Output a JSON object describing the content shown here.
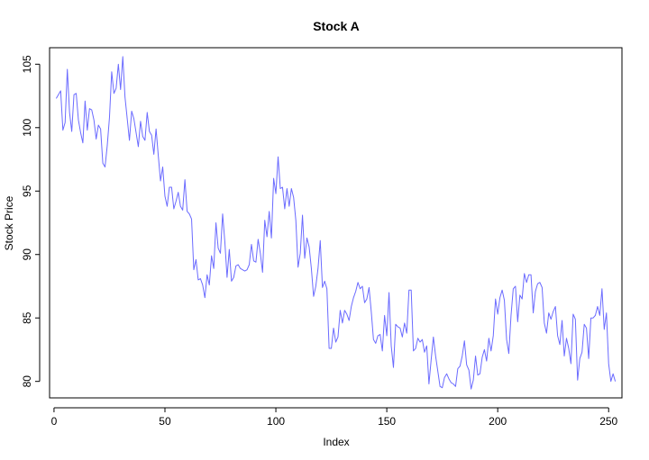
{
  "chart_data": {
    "type": "line",
    "title": "Stock A",
    "xlabel": "Index",
    "ylabel": "Stock Price",
    "xlim": [
      -2,
      256
    ],
    "ylim": [
      78.7,
      106.3
    ],
    "xticks": [
      0,
      50,
      100,
      150,
      200,
      250
    ],
    "yticks": [
      80,
      85,
      90,
      95,
      100,
      105
    ],
    "grid": false,
    "line_color": "#6b6bff",
    "series": [
      {
        "x": [
          1,
          2,
          3,
          4,
          5,
          6,
          7,
          8,
          9,
          10,
          11,
          12,
          13,
          14,
          15,
          16,
          17,
          18,
          19,
          20,
          21,
          22,
          23,
          24,
          25,
          26,
          27,
          28,
          29,
          30,
          31,
          32,
          33,
          34,
          35,
          36,
          37,
          38,
          39,
          40,
          41,
          42,
          43,
          44,
          45,
          46,
          47,
          48,
          49,
          50,
          51,
          52,
          53,
          54,
          55,
          56,
          57,
          58,
          59,
          60,
          61,
          62,
          63,
          64,
          65,
          66,
          67,
          68,
          69,
          70,
          71,
          72,
          73,
          74,
          75,
          76,
          77,
          78,
          79,
          80,
          81,
          82,
          83,
          84,
          85,
          86,
          87,
          88,
          89,
          90,
          91,
          92,
          93,
          94,
          95,
          96,
          97,
          98,
          99,
          100,
          101,
          102,
          103,
          104,
          105,
          106,
          107,
          108,
          109,
          110,
          111,
          112,
          113,
          114,
          115,
          116,
          117,
          118,
          119,
          120,
          121,
          122,
          123,
          124,
          125,
          126,
          127,
          128,
          129,
          130,
          131,
          132,
          133,
          134,
          135,
          136,
          137,
          138,
          139,
          140,
          141,
          142,
          143,
          144,
          145,
          146,
          147,
          148,
          149,
          150,
          151,
          152,
          153,
          154,
          155,
          156,
          157,
          158,
          159,
          160,
          161,
          162,
          163,
          164,
          165,
          166,
          167,
          168,
          169,
          170,
          171,
          172,
          173,
          174,
          175,
          176,
          177,
          178,
          179,
          180,
          181,
          182,
          183,
          184,
          185,
          186,
          187,
          188,
          189,
          190,
          191,
          192,
          193,
          194,
          195,
          196,
          197,
          198,
          199,
          200,
          201,
          202,
          203,
          204,
          205,
          206,
          207,
          208,
          209,
          210,
          211,
          212,
          213,
          214,
          215,
          216,
          217,
          218,
          219,
          220,
          221,
          222,
          223,
          224,
          225,
          226,
          227,
          228,
          229,
          230,
          231,
          232,
          233,
          234,
          235,
          236,
          237,
          238,
          239,
          240,
          241,
          242,
          243,
          244,
          245,
          246,
          247,
          248,
          249,
          250,
          251,
          252,
          253
        ],
        "values": [
          102.3,
          102.6,
          102.9,
          99.8,
          100.4,
          104.6,
          101.2,
          99.7,
          102.6,
          102.7,
          100.6,
          99.6,
          98.8,
          102.1,
          99.8,
          101.5,
          101.4,
          100.6,
          99.1,
          100.2,
          99.9,
          97.2,
          96.9,
          98.6,
          100.8,
          104.4,
          102.7,
          103.1,
          105.0,
          103.0,
          105.6,
          102.4,
          100.7,
          99.0,
          101.3,
          100.7,
          99.6,
          98.5,
          100.5,
          99.3,
          99.0,
          101.2,
          99.7,
          99.4,
          97.9,
          99.9,
          97.8,
          95.8,
          96.9,
          94.6,
          93.8,
          95.3,
          95.3,
          93.6,
          94.2,
          94.9,
          93.8,
          93.5,
          95.9,
          93.4,
          93.2,
          92.8,
          88.8,
          89.6,
          88.0,
          88.1,
          87.6,
          86.6,
          88.4,
          87.6,
          89.9,
          88.9,
          92.5,
          90.5,
          90.1,
          93.2,
          91.0,
          88.2,
          90.4,
          87.9,
          88.2,
          89.1,
          89.2,
          88.9,
          88.8,
          88.7,
          88.8,
          89.2,
          90.8,
          89.5,
          89.4,
          91.2,
          90.1,
          88.6,
          92.7,
          91.4,
          93.4,
          91.3,
          96.0,
          94.8,
          97.7,
          95.2,
          95.3,
          93.6,
          95.2,
          93.8,
          95.2,
          94.5,
          92.7,
          89.0,
          90.1,
          93.1,
          89.7,
          91.3,
          90.6,
          88.9,
          86.7,
          87.5,
          88.9,
          91.1,
          87.4,
          87.9,
          87.3,
          82.6,
          82.6,
          84.2,
          83.1,
          83.5,
          85.6,
          84.6,
          85.6,
          85.3,
          84.8,
          85.9,
          86.6,
          87.1,
          87.8,
          87.3,
          87.5,
          86.2,
          86.5,
          87.4,
          85.5,
          83.3,
          83.0,
          83.6,
          83.7,
          82.4,
          85.2,
          83.6,
          87.0,
          82.8,
          81.1,
          84.5,
          84.3,
          84.2,
          83.5,
          84.6,
          83.8,
          87.2,
          87.2,
          82.4,
          82.6,
          83.4,
          83.1,
          83.3,
          82.3,
          82.8,
          79.8,
          81.7,
          83.5,
          82.0,
          80.8,
          79.6,
          79.5,
          80.3,
          80.6,
          80.2,
          79.9,
          79.8,
          79.6,
          81.0,
          81.2,
          82.0,
          83.2,
          81.3,
          80.9,
          79.4,
          80.1,
          82.0,
          80.5,
          80.6,
          81.9,
          82.5,
          81.6,
          83.4,
          82.4,
          83.6,
          86.5,
          85.3,
          86.6,
          87.2,
          86.4,
          83.3,
          82.2,
          85.2,
          87.3,
          87.5,
          84.7,
          86.8,
          86.5,
          88.5,
          87.8,
          88.4,
          88.4,
          85.4,
          87.1,
          87.7,
          87.8,
          87.4,
          84.6,
          83.8,
          85.4,
          84.9,
          85.5,
          85.9,
          83.6,
          82.9,
          84.8,
          82.0,
          83.4,
          82.6,
          81.4,
          85.3,
          84.9,
          80.1,
          81.8,
          82.3,
          84.5,
          84.2,
          81.8,
          85.0,
          85.0,
          85.2,
          85.9,
          85.2,
          87.3,
          84.1,
          85.4,
          81.4,
          80.0,
          80.6,
          80.0
        ]
      }
    ]
  }
}
